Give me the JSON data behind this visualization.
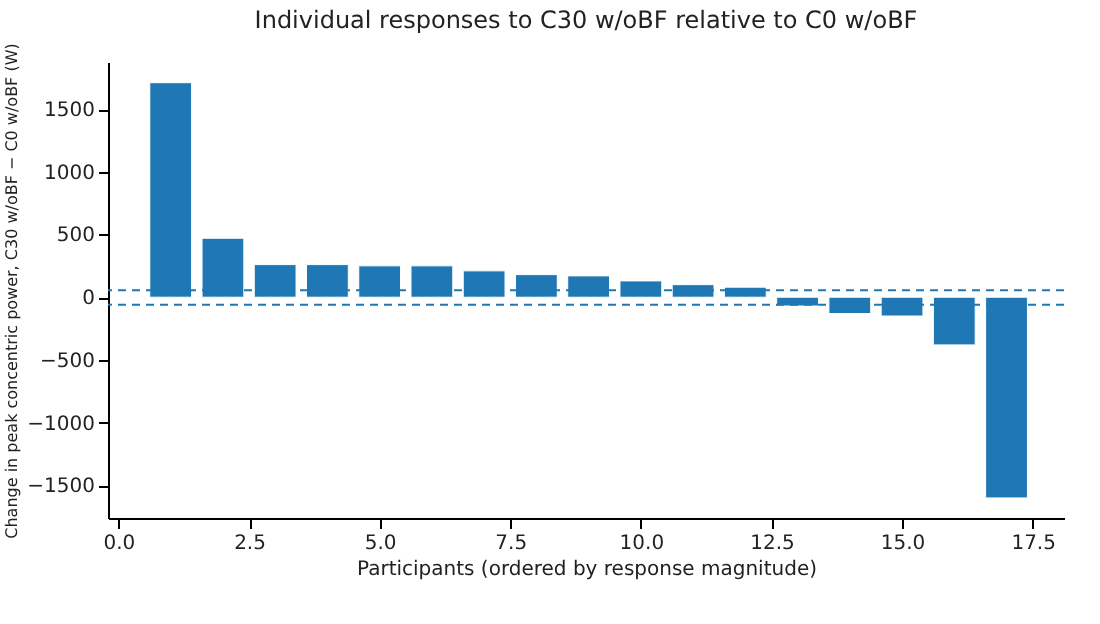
{
  "chart_data": {
    "type": "bar",
    "title": "Individual responses to C30 w/oBF relative to C0 w/oBF",
    "xlabel": "Participants (ordered by response magnitude)",
    "ylabel": "Change in peak concentric power, C30 w/oBF − C0 w/oBF (W)",
    "x": [
      1,
      2,
      3,
      4,
      5,
      6,
      7,
      8,
      9,
      10,
      11,
      12,
      13,
      14,
      15,
      16,
      17
    ],
    "values": [
      1710,
      470,
      260,
      260,
      250,
      250,
      210,
      180,
      170,
      130,
      100,
      80,
      -70,
      -130,
      -150,
      -380,
      -1600
    ],
    "color": "#1f77b4",
    "xlim": [
      -0.2,
      18.1
    ],
    "xticks": [
      {
        "value": 0,
        "label": "0.0"
      },
      {
        "value": 2.5,
        "label": "2.5"
      },
      {
        "value": 5,
        "label": "5.0"
      },
      {
        "value": 7.5,
        "label": "7.5"
      },
      {
        "value": 10,
        "label": "10.0"
      },
      {
        "value": 12.5,
        "label": "12.5"
      },
      {
        "value": 15,
        "label": "15.0"
      },
      {
        "value": 17.5,
        "label": "17.5"
      }
    ],
    "ylim": [
      -1760,
      1875
    ],
    "yticks": [
      {
        "value": -1500,
        "label": "−1500"
      },
      {
        "value": -1000,
        "label": "−1000"
      },
      {
        "value": -500,
        "label": "−500"
      },
      0,
      500,
      1000,
      1500
    ],
    "ref_lines": [
      {
        "axis": "y",
        "value": 55,
        "color": "#1f77b4",
        "line_style": "dashed"
      },
      {
        "axis": "y",
        "value": -60,
        "color": "#1f77b4",
        "line_style": "dashed"
      }
    ],
    "grid": false
  }
}
